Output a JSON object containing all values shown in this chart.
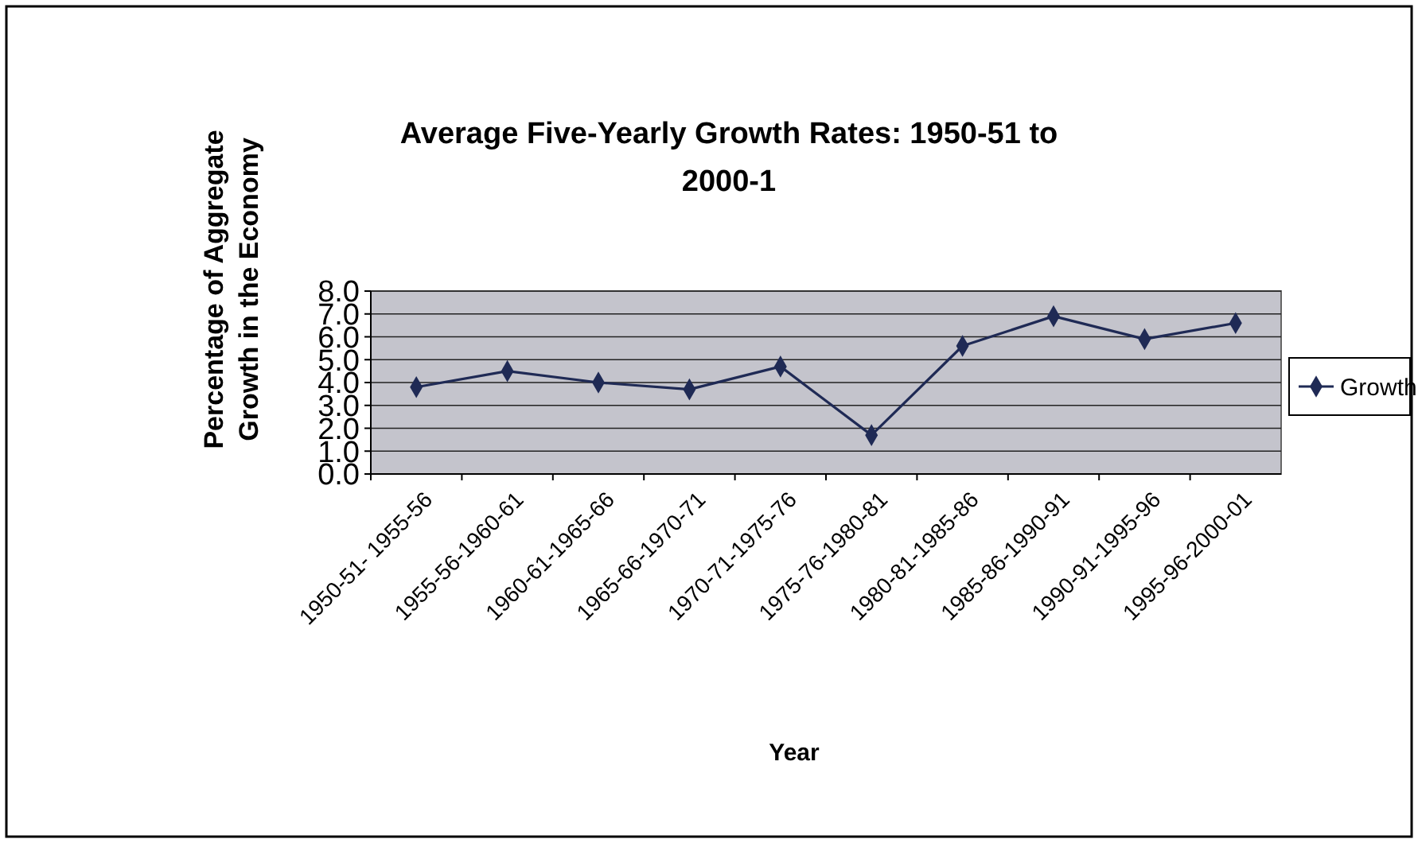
{
  "chart_data": {
    "type": "line",
    "title": "Average Five-Yearly Growth Rates: 1950-51 to 2000-1",
    "xlabel": "Year",
    "ylabel": "Percentage of Aggregate Growth in the Economy",
    "categories": [
      "1950-51- 1955-56",
      "1955-56-1960-61",
      "1960-61-1965-66",
      "1965-66-1970-71",
      "1970-71-1975-76",
      "1975-76-1980-81",
      "1980-81-1985-86",
      "1985-86-1990-91",
      "1990-91-1995-96",
      "1995-96-2000-01"
    ],
    "series": [
      {
        "name": "Growth",
        "color": "#1f2a55",
        "values": [
          3.8,
          4.5,
          4.0,
          3.7,
          4.7,
          1.7,
          5.6,
          6.9,
          5.9,
          6.6
        ]
      }
    ],
    "ylim": [
      0,
      8
    ],
    "yticks": [
      {
        "value": 0,
        "label": "0.0"
      },
      {
        "value": 1,
        "label": "1.0"
      },
      {
        "value": 2,
        "label": "2.0"
      },
      {
        "value": 3,
        "label": "3.0"
      },
      {
        "value": 4,
        "label": "4.0"
      },
      {
        "value": 5,
        "label": "5.0"
      },
      {
        "value": 6,
        "label": "6.0"
      },
      {
        "value": 7,
        "label": "7.0"
      },
      {
        "value": 8,
        "label": "8.0"
      }
    ],
    "grid": "y",
    "legend": "right",
    "marker": "diamond",
    "line_style": "solid"
  }
}
